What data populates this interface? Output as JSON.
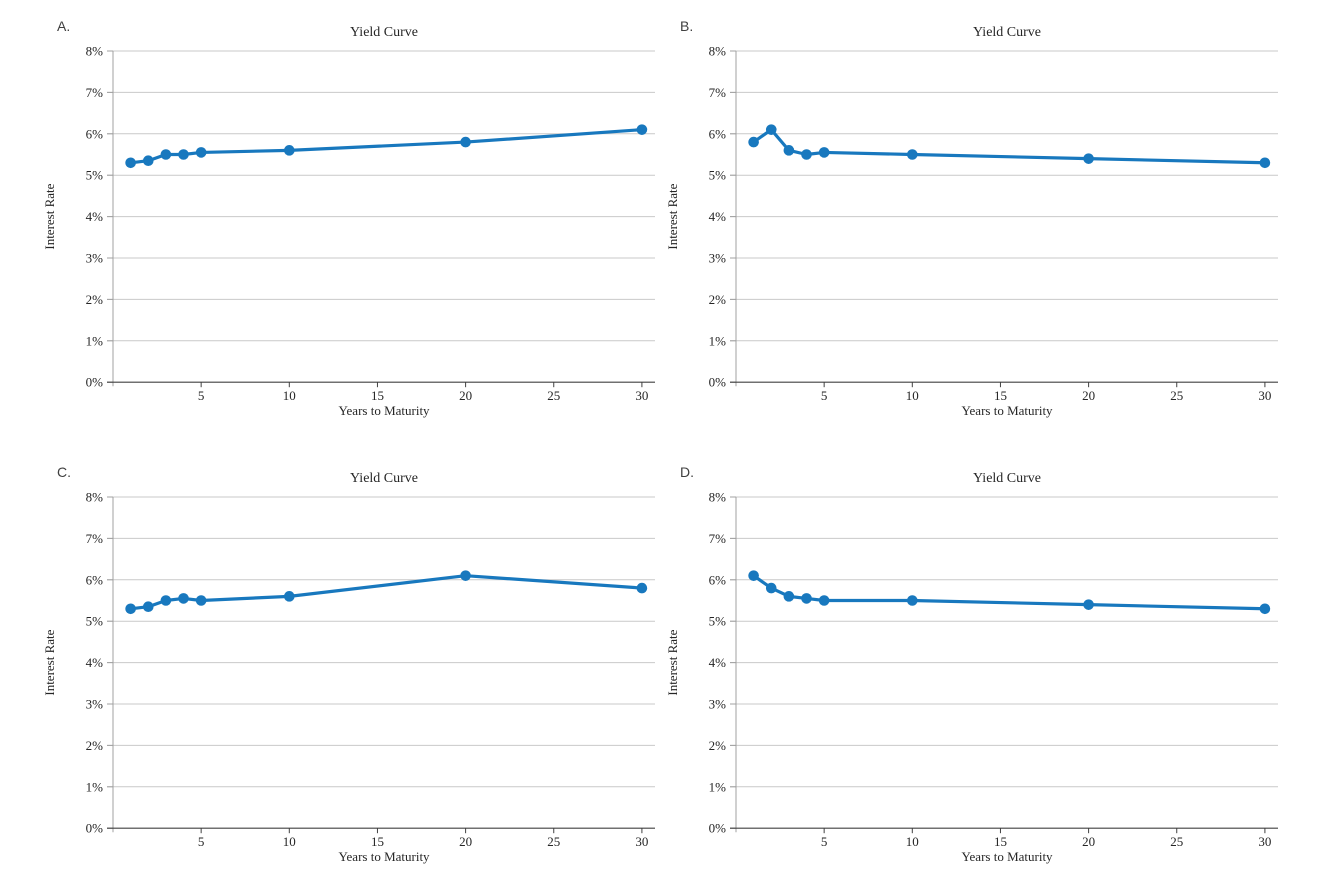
{
  "figure": {
    "background": "#ffffff",
    "panel_labels": {
      "a": "A.",
      "b": "B.",
      "c": "C.",
      "d": "D."
    }
  },
  "style": {
    "line_color": "#1878be",
    "marker_color": "#1878be",
    "gridline_color": "#c9c9c9",
    "x_axis_color": "#404040",
    "y_axis_color": "#a0a0a0",
    "text_color": "#262626"
  },
  "chart_data": [
    {
      "id": "A",
      "panel_label": "A.",
      "type": "line",
      "title": "Yield Curve",
      "xlabel": "Years to Maturity",
      "ylabel": "Interest Rate",
      "x": [
        1,
        2,
        3,
        4,
        5,
        10,
        20,
        30
      ],
      "values": [
        5.3,
        5.35,
        5.5,
        5.5,
        5.55,
        5.6,
        5.8,
        6.1
      ],
      "shape_note": "upward-sloping (normal) yield curve",
      "xlim": [
        0,
        30.7
      ],
      "ylim": [
        0,
        8
      ],
      "xticks": [
        5,
        10,
        15,
        20,
        25,
        30
      ],
      "yticks": [
        0,
        1,
        2,
        3,
        4,
        5,
        6,
        7,
        8
      ],
      "ytick_labels": [
        "0%",
        "1%",
        "2%",
        "3%",
        "4%",
        "5%",
        "6%",
        "7%",
        "8%"
      ],
      "grid": true,
      "legend": "none"
    },
    {
      "id": "B",
      "panel_label": "B.",
      "type": "line",
      "title": "Yield Curve",
      "xlabel": "Years to Maturity",
      "ylabel": "Interest Rate",
      "x": [
        1,
        2,
        3,
        4,
        5,
        10,
        20,
        30
      ],
      "values": [
        5.8,
        6.1,
        5.6,
        5.5,
        5.55,
        5.5,
        5.4,
        5.3
      ],
      "shape_note": "hump at 2 years then downward-sloping",
      "xlim": [
        0,
        30.7
      ],
      "ylim": [
        0,
        8
      ],
      "xticks": [
        5,
        10,
        15,
        20,
        25,
        30
      ],
      "yticks": [
        0,
        1,
        2,
        3,
        4,
        5,
        6,
        7,
        8
      ],
      "ytick_labels": [
        "0%",
        "1%",
        "2%",
        "3%",
        "4%",
        "5%",
        "6%",
        "7%",
        "8%"
      ],
      "grid": true,
      "legend": "none"
    },
    {
      "id": "C",
      "panel_label": "C.",
      "type": "line",
      "title": "Yield Curve",
      "xlabel": "Years to Maturity",
      "ylabel": "Interest Rate",
      "x": [
        1,
        2,
        3,
        4,
        5,
        10,
        20,
        30
      ],
      "values": [
        5.3,
        5.35,
        5.5,
        5.55,
        5.5,
        5.6,
        6.1,
        5.8
      ],
      "shape_note": "upward-sloping with hump at 20 years",
      "xlim": [
        0,
        30.7
      ],
      "ylim": [
        0,
        8
      ],
      "xticks": [
        5,
        10,
        15,
        20,
        25,
        30
      ],
      "yticks": [
        0,
        1,
        2,
        3,
        4,
        5,
        6,
        7,
        8
      ],
      "ytick_labels": [
        "0%",
        "1%",
        "2%",
        "3%",
        "4%",
        "5%",
        "6%",
        "7%",
        "8%"
      ],
      "grid": true,
      "legend": "none"
    },
    {
      "id": "D",
      "panel_label": "D.",
      "type": "line",
      "title": "Yield Curve",
      "xlabel": "Years to Maturity",
      "ylabel": "Interest Rate",
      "x": [
        1,
        2,
        3,
        4,
        5,
        10,
        20,
        30
      ],
      "values": [
        6.1,
        5.8,
        5.6,
        5.55,
        5.5,
        5.5,
        5.4,
        5.3
      ],
      "shape_note": "downward-sloping (inverted) yield curve",
      "xlim": [
        0,
        30.7
      ],
      "ylim": [
        0,
        8
      ],
      "xticks": [
        5,
        10,
        15,
        20,
        25,
        30
      ],
      "yticks": [
        0,
        1,
        2,
        3,
        4,
        5,
        6,
        7,
        8
      ],
      "ytick_labels": [
        "0%",
        "1%",
        "2%",
        "3%",
        "4%",
        "5%",
        "6%",
        "7%",
        "8%"
      ],
      "grid": true,
      "legend": "none"
    }
  ]
}
